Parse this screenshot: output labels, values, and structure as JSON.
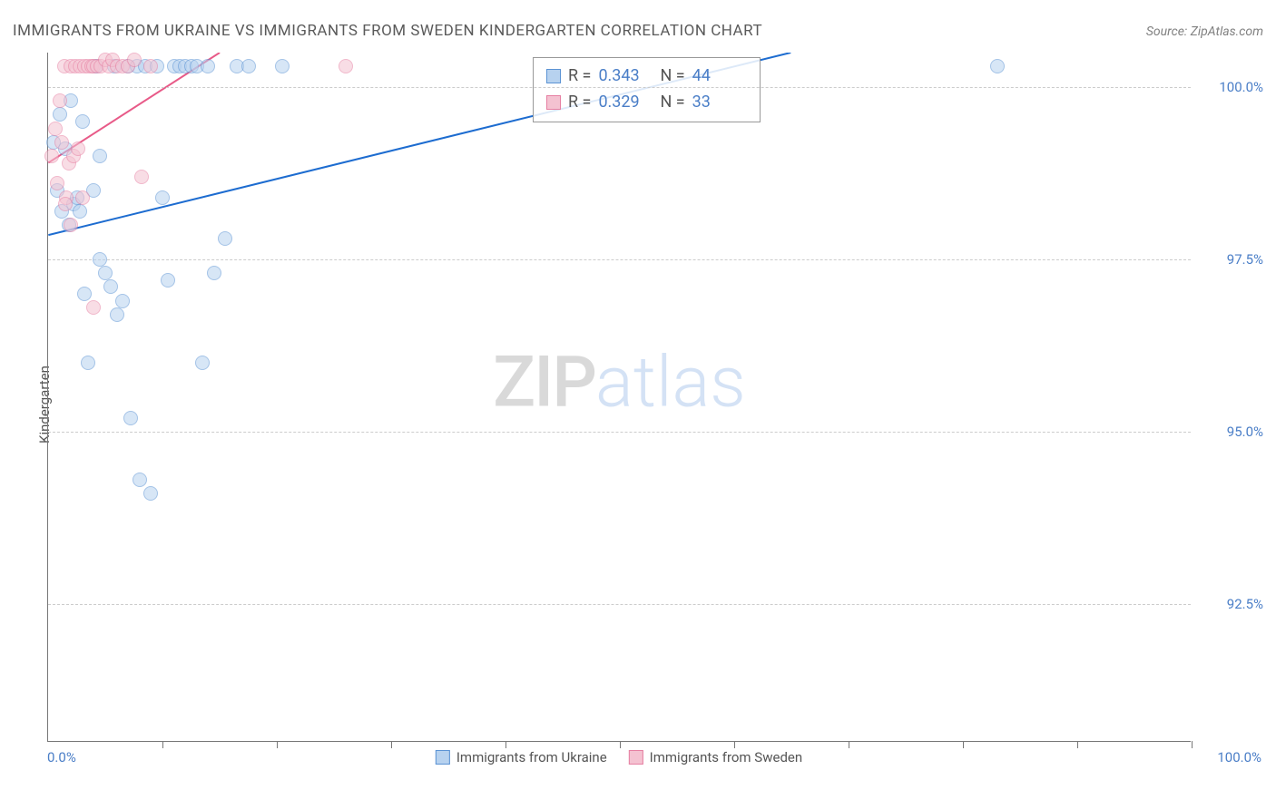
{
  "title": "IMMIGRANTS FROM UKRAINE VS IMMIGRANTS FROM SWEDEN KINDERGARTEN CORRELATION CHART",
  "source": "Source: ZipAtlas.com",
  "watermark": {
    "left": "ZIP",
    "right": "atlas"
  },
  "chart": {
    "type": "scatter",
    "ylabel": "Kindergarten",
    "x_min_label": "0.0%",
    "x_max_label": "100.0%",
    "xlim": [
      0,
      100
    ],
    "ylim": [
      90.5,
      100.5
    ],
    "y_ticks": [
      {
        "value": 100.0,
        "label": "100.0%"
      },
      {
        "value": 97.5,
        "label": "97.5%"
      },
      {
        "value": 95.0,
        "label": "95.0%"
      },
      {
        "value": 92.5,
        "label": "92.5%"
      }
    ],
    "x_tick_positions": [
      10,
      20,
      30,
      40,
      50,
      60,
      70,
      80,
      90,
      100
    ],
    "background_color": "#ffffff",
    "grid_color": "#cccccc",
    "marker_radius": 8,
    "series": [
      {
        "id": "ukraine",
        "label": "Immigrants from Ukraine",
        "fill_color": "#b7d2ef",
        "stroke_color": "#5b93d4",
        "trend_color": "#1d6cd0",
        "r_label": "R = ",
        "r_value": "0.343",
        "n_label": "N = ",
        "n_value": "44",
        "trend_line": {
          "x1": 0,
          "y1": 97.85,
          "x2": 65,
          "y2": 100.5
        },
        "points": [
          {
            "x": 0.5,
            "y": 99.2
          },
          {
            "x": 0.8,
            "y": 98.5
          },
          {
            "x": 1.0,
            "y": 99.6
          },
          {
            "x": 1.2,
            "y": 98.2
          },
          {
            "x": 1.5,
            "y": 99.1
          },
          {
            "x": 1.8,
            "y": 98.0
          },
          {
            "x": 2.0,
            "y": 99.8
          },
          {
            "x": 2.2,
            "y": 98.3
          },
          {
            "x": 2.5,
            "y": 98.4
          },
          {
            "x": 2.8,
            "y": 98.2
          },
          {
            "x": 3.0,
            "y": 99.5
          },
          {
            "x": 3.2,
            "y": 97.0
          },
          {
            "x": 3.5,
            "y": 96.0
          },
          {
            "x": 4.0,
            "y": 98.5
          },
          {
            "x": 4.2,
            "y": 100.3
          },
          {
            "x": 4.5,
            "y": 99.0
          },
          {
            "x": 5.0,
            "y": 97.3
          },
          {
            "x": 5.5,
            "y": 97.1
          },
          {
            "x": 5.8,
            "y": 100.3
          },
          {
            "x": 6.0,
            "y": 96.7
          },
          {
            "x": 6.5,
            "y": 96.9
          },
          {
            "x": 7.0,
            "y": 100.3
          },
          {
            "x": 7.2,
            "y": 95.2
          },
          {
            "x": 7.8,
            "y": 100.3
          },
          {
            "x": 8.0,
            "y": 94.3
          },
          {
            "x": 8.5,
            "y": 100.3
          },
          {
            "x": 9.0,
            "y": 94.1
          },
          {
            "x": 9.5,
            "y": 100.3
          },
          {
            "x": 10.0,
            "y": 98.4
          },
          {
            "x": 10.5,
            "y": 97.2
          },
          {
            "x": 11.0,
            "y": 100.3
          },
          {
            "x": 11.5,
            "y": 100.3
          },
          {
            "x": 12.0,
            "y": 100.3
          },
          {
            "x": 12.5,
            "y": 100.3
          },
          {
            "x": 13.0,
            "y": 100.3
          },
          {
            "x": 13.5,
            "y": 96.0
          },
          {
            "x": 14.0,
            "y": 100.3
          },
          {
            "x": 14.5,
            "y": 97.3
          },
          {
            "x": 15.5,
            "y": 97.8
          },
          {
            "x": 16.5,
            "y": 100.3
          },
          {
            "x": 17.5,
            "y": 100.3
          },
          {
            "x": 20.5,
            "y": 100.3
          },
          {
            "x": 83.0,
            "y": 100.3
          },
          {
            "x": 4.5,
            "y": 97.5
          }
        ]
      },
      {
        "id": "sweden",
        "label": "Immigrants from Sweden",
        "fill_color": "#f4c2d1",
        "stroke_color": "#e67fa2",
        "trend_color": "#e85a88",
        "r_label": "R = ",
        "r_value": "0.329",
        "n_label": "N = ",
        "n_value": "33",
        "trend_line": {
          "x1": 0,
          "y1": 98.9,
          "x2": 15,
          "y2": 100.5
        },
        "points": [
          {
            "x": 0.3,
            "y": 99.0
          },
          {
            "x": 0.6,
            "y": 99.4
          },
          {
            "x": 0.8,
            "y": 98.6
          },
          {
            "x": 1.0,
            "y": 99.8
          },
          {
            "x": 1.2,
            "y": 99.2
          },
          {
            "x": 1.4,
            "y": 100.3
          },
          {
            "x": 1.6,
            "y": 98.4
          },
          {
            "x": 1.8,
            "y": 98.9
          },
          {
            "x": 2.0,
            "y": 100.3
          },
          {
            "x": 2.2,
            "y": 99.0
          },
          {
            "x": 2.4,
            "y": 100.3
          },
          {
            "x": 2.6,
            "y": 99.1
          },
          {
            "x": 2.8,
            "y": 100.3
          },
          {
            "x": 3.0,
            "y": 98.4
          },
          {
            "x": 3.2,
            "y": 100.3
          },
          {
            "x": 3.5,
            "y": 100.3
          },
          {
            "x": 3.8,
            "y": 100.3
          },
          {
            "x": 4.0,
            "y": 100.3
          },
          {
            "x": 4.3,
            "y": 100.3
          },
          {
            "x": 4.6,
            "y": 100.3
          },
          {
            "x": 5.0,
            "y": 100.4
          },
          {
            "x": 5.3,
            "y": 100.3
          },
          {
            "x": 5.6,
            "y": 100.4
          },
          {
            "x": 6.0,
            "y": 100.3
          },
          {
            "x": 6.5,
            "y": 100.3
          },
          {
            "x": 7.0,
            "y": 100.3
          },
          {
            "x": 7.5,
            "y": 100.4
          },
          {
            "x": 8.2,
            "y": 98.7
          },
          {
            "x": 9.0,
            "y": 100.3
          },
          {
            "x": 4.0,
            "y": 96.8
          },
          {
            "x": 2.0,
            "y": 98.0
          },
          {
            "x": 1.5,
            "y": 98.3
          },
          {
            "x": 26.0,
            "y": 100.3
          }
        ]
      }
    ]
  }
}
